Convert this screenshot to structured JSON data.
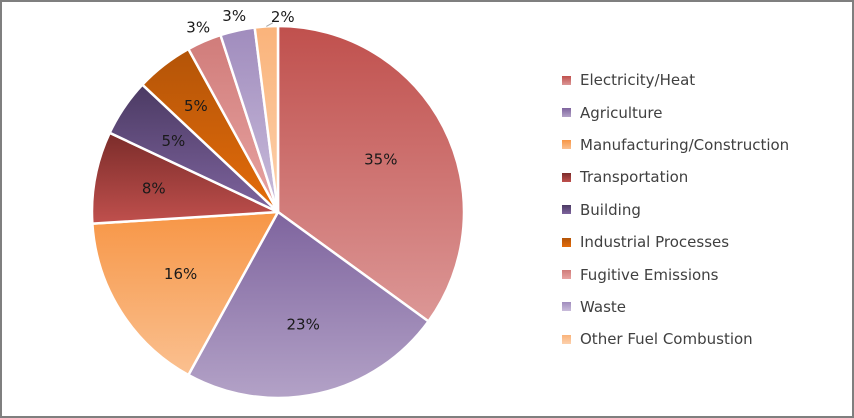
{
  "chart_data": {
    "type": "pie",
    "title": "",
    "legend_position": "right",
    "slices": [
      {
        "label": "Electricity/Heat",
        "value": 35,
        "display": "35%",
        "color_light": "#dc9796",
        "color_dark": "#c0504d"
      },
      {
        "label": "Agriculture",
        "value": 23,
        "display": "23%",
        "color_light": "#b3a2c7",
        "color_dark": "#7e649e"
      },
      {
        "label": "Manufacturing/Construction",
        "value": 16,
        "display": "16%",
        "color_light": "#fac090",
        "color_dark": "#f79646"
      },
      {
        "label": "Transportation",
        "value": 8,
        "display": "8%",
        "color_light": "#c0504d",
        "color_dark": "#7b2c2a"
      },
      {
        "label": "Building",
        "value": 5,
        "display": "5%",
        "color_light": "#7e649e",
        "color_dark": "#4b3a63"
      },
      {
        "label": "Industrial Processes",
        "value": 5,
        "display": "5%",
        "color_light": "#e46c0a",
        "color_dark": "#b35408"
      },
      {
        "label": "Fugitive Emissions",
        "value": 3,
        "display": "3%",
        "color_light": "#e8a4a2",
        "color_dark": "#d07c7a"
      },
      {
        "label": "Waste",
        "value": 3,
        "display": "3%",
        "color_light": "#c9bcdb",
        "color_dark": "#a08cbd"
      },
      {
        "label": "Other Fuel Combustion",
        "value": 2,
        "display": "2%",
        "color_light": "#fcd1ad",
        "color_dark": "#fab37a"
      }
    ]
  }
}
